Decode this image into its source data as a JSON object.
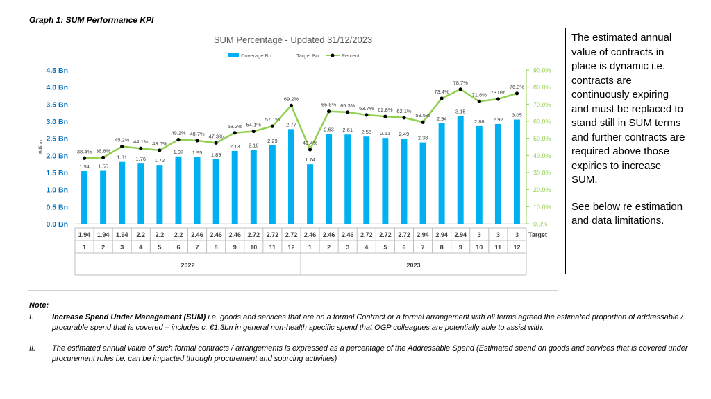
{
  "graph_title": "Graph 1:  SUM Performance KPI",
  "side_text": {
    "para1": "The estimated annual value of contracts in place is dynamic i.e. contracts are continuously expiring and must be replaced to stand still in SUM terms and further contracts are required above those expiries to increase SUM.",
    "para2": "See below re estimation and data limitations."
  },
  "notes": {
    "heading": "Note:",
    "items": [
      {
        "num": "I.",
        "bold": "Increase Spend Under Management (SUM)",
        "text": " i.e. goods and services that are on a formal Contract or a formal arrangement with all terms agreed the estimated proportion of addressable / procurable spend that is covered – includes c. €1.3bn in general non-health specific spend that OGP colleagues are potentially able to assist with."
      },
      {
        "num": "II.",
        "bold": "",
        "text": " The estimated annual value of such formal contracts / arrangements is expressed as a percentage of the Addressable Spend (Estimated spend on goods and services that is covered under procurement rules i.e. can be impacted through procurement and sourcing activities)"
      }
    ]
  },
  "colors": {
    "bar": "#00b0f0",
    "line": "#92d050",
    "marker": "#000000",
    "left_axis": "#0070c0",
    "right_axis": "#92d050"
  },
  "chart_data": {
    "type": "bar+line",
    "title": "SUM Percentage - Updated 31/12/2023",
    "legend": [
      "Coverage Bn",
      "Target Bn",
      "Percent"
    ],
    "ylabel": "Billion",
    "ylim": [
      0,
      4.5
    ],
    "y_ticks": [
      "0.0 Bn",
      "0.5 Bn",
      "1.0 Bn",
      "1.5 Bn",
      "2.0 Bn",
      "2.5 Bn",
      "3.0 Bn",
      "3.5 Bn",
      "4.0 Bn",
      "4.5 Bn"
    ],
    "y2lim": [
      0,
      90
    ],
    "y2_ticks": [
      "0.0%",
      "10.0%",
      "20.0%",
      "30.0%",
      "40.0%",
      "50.0%",
      "60.0%",
      "70.0%",
      "80.0%",
      "90.0%"
    ],
    "months": [
      "1",
      "2",
      "3",
      "4",
      "5",
      "6",
      "7",
      "8",
      "9",
      "10",
      "11",
      "12",
      "1",
      "2",
      "3",
      "4",
      "5",
      "6",
      "7",
      "8",
      "9",
      "10",
      "11",
      "12"
    ],
    "years": [
      "2022",
      "2023"
    ],
    "target_label": "Target",
    "targets": [
      "1.94",
      "1.94",
      "1.94",
      "2.2",
      "2.2",
      "2.2",
      "2.46",
      "2.46",
      "2.46",
      "2.72",
      "2.72",
      "2.72",
      "2.46",
      "2.46",
      "2.46",
      "2.72",
      "2.72",
      "2.72",
      "2.94",
      "2.94",
      "2.94",
      "3",
      "3",
      "3"
    ],
    "coverage": [
      1.54,
      1.55,
      1.81,
      1.76,
      1.72,
      1.97,
      1.95,
      1.89,
      2.13,
      2.16,
      2.29,
      2.77,
      1.74,
      2.63,
      2.61,
      2.55,
      2.51,
      2.49,
      2.38,
      2.94,
      3.15,
      2.86,
      2.92,
      3.05
    ],
    "coverage_labels": [
      "1.54",
      "1.55",
      "1.81",
      "1.76",
      "1.72",
      "1.97",
      "1.95",
      "1.89",
      "2.13",
      "2.16",
      "2.29",
      "2.77",
      "1.74",
      "2.63",
      "2.61",
      "2.55",
      "2.51",
      "2.49",
      "2.38",
      "2.94",
      "3.15",
      "2.86",
      "2.92",
      "3.05"
    ],
    "percent": [
      38.4,
      38.8,
      45.2,
      44.1,
      43.0,
      49.2,
      48.7,
      47.3,
      53.2,
      54.1,
      57.1,
      69.2,
      43.4,
      65.8,
      65.3,
      63.7,
      62.8,
      62.1,
      59.5,
      73.4,
      78.7,
      71.6,
      73.0,
      76.3
    ],
    "percent_labels": [
      "38.4%",
      "38.8%",
      "45.2%",
      "44.1%",
      "43.0%",
      "49.2%",
      "48.7%",
      "47.3%",
      "53.2%",
      "54.1%",
      "57.1%",
      "69.2%",
      "43.4%",
      "65.8%",
      "65.3%",
      "63.7%",
      "62.8%",
      "62.1%",
      "59.5%",
      "73.4%",
      "78.7%",
      "71.6%",
      "73.0%",
      "76.3%"
    ]
  }
}
